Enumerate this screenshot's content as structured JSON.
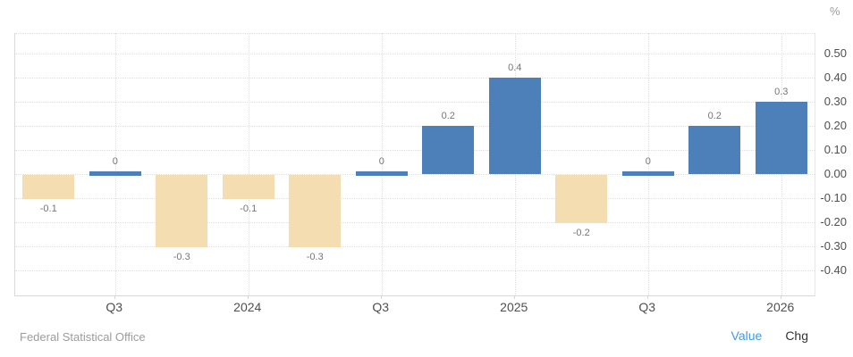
{
  "footer": {
    "source": "Federal Statistical Office",
    "value_label": "Value",
    "chg_label": "Chg"
  },
  "colors": {
    "positive_bar": "#4d80b8",
    "negative_bar": "#f4deb1",
    "value_link_blue": "#3c9ce8",
    "chg_link_dark": "#333333"
  },
  "chart_data": {
    "type": "bar",
    "title": "",
    "unit_label": "%",
    "categories": [
      "",
      "Q3",
      "",
      "2024",
      "",
      "Q3",
      "",
      "2025",
      "",
      "Q3",
      "",
      "2026"
    ],
    "values": [
      -0.1,
      0,
      -0.3,
      -0.1,
      -0.3,
      0,
      0.2,
      0.4,
      -0.2,
      0,
      0.2,
      0.3
    ],
    "bar_labels": [
      "-0.1",
      "0",
      "-0.3",
      "-0.1",
      "-0.3",
      "0",
      "0.2",
      "0.4",
      "-0.2",
      "0",
      "0.2",
      "0.3"
    ],
    "y_ticks": [
      {
        "label": "0.50",
        "value": 0.5
      },
      {
        "label": "0.40",
        "value": 0.4
      },
      {
        "label": "0.30",
        "value": 0.3
      },
      {
        "label": "0.20",
        "value": 0.2
      },
      {
        "label": "0.10",
        "value": 0.1
      },
      {
        "label": "0.00",
        "value": 0.0
      },
      {
        "label": "-0.10",
        "value": -0.1
      },
      {
        "label": "-0.20",
        "value": -0.2
      },
      {
        "label": "-0.30",
        "value": -0.3
      },
      {
        "label": "-0.40",
        "value": -0.4
      }
    ],
    "ylim": [
      -0.5,
      0.58
    ],
    "grid": true,
    "legend": "none",
    "color_rule": "negative values beige, zero and positive values blue"
  }
}
